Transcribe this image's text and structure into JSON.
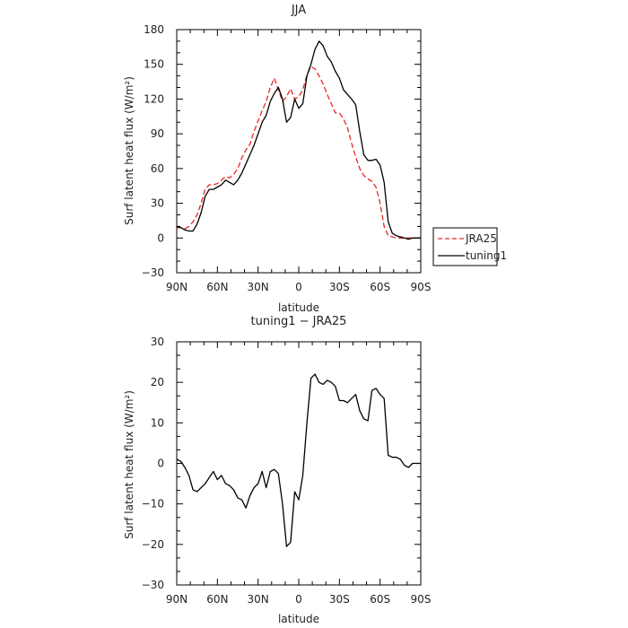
{
  "chart_data": [
    {
      "type": "line",
      "title": "JJA",
      "xlabel": "latitude",
      "ylabel": "Surf latent heat flux (W/m²)",
      "xlim": [
        90,
        -90
      ],
      "ylim": [
        -30,
        180
      ],
      "x_ticks": [
        90,
        60,
        30,
        0,
        -30,
        -60,
        -90
      ],
      "x_tick_labels": [
        "90N",
        "60N",
        "30N",
        "0",
        "30S",
        "60S",
        "90S"
      ],
      "y_ticks": [
        -30,
        0,
        30,
        60,
        90,
        120,
        150,
        180
      ],
      "y_tick_labels": [
        "−30",
        "0",
        "30",
        "60",
        "90",
        "120",
        "150",
        "180"
      ],
      "legend_position": "right",
      "series": [
        {
          "name": "JRA25",
          "color": "#e8262a",
          "dash": "dashed",
          "x": [
            90,
            87,
            84,
            81,
            78,
            75,
            72,
            69,
            66,
            63,
            60,
            57,
            54,
            51,
            48,
            45,
            42,
            39,
            36,
            33,
            30,
            27,
            24,
            21,
            18,
            15,
            12,
            9,
            6,
            3,
            0,
            -3,
            -6,
            -9,
            -12,
            -15,
            -18,
            -21,
            -24,
            -27,
            -30,
            -33,
            -36,
            -39,
            -42,
            -45,
            -48,
            -51,
            -54,
            -57,
            -60,
            -63,
            -66,
            -69,
            -72,
            -75,
            -78,
            -81,
            -84,
            -87,
            -90
          ],
          "y": [
            9,
            9,
            8,
            10,
            14,
            20,
            30,
            42,
            46,
            46,
            47,
            50,
            53,
            52,
            55,
            60,
            69,
            76,
            81,
            92,
            101,
            110,
            118,
            130,
            138,
            128,
            118,
            122,
            129,
            120,
            122,
            128,
            141,
            148,
            146,
            140,
            133,
            124,
            116,
            108,
            108,
            103,
            95,
            82,
            70,
            60,
            54,
            51,
            49,
            44,
            30,
            10,
            2,
            1,
            0,
            0,
            0,
            0,
            0,
            0,
            0
          ]
        },
        {
          "name": "tuning1",
          "color": "#000000",
          "dash": "solid",
          "x": [
            90,
            87,
            84,
            81,
            78,
            75,
            72,
            69,
            66,
            63,
            60,
            57,
            54,
            51,
            48,
            45,
            42,
            39,
            36,
            33,
            30,
            27,
            24,
            21,
            18,
            15,
            12,
            9,
            6,
            3,
            0,
            -3,
            -6,
            -9,
            -12,
            -15,
            -18,
            -21,
            -24,
            -27,
            -30,
            -33,
            -36,
            -39,
            -42,
            -45,
            -48,
            -51,
            -54,
            -57,
            -60,
            -63,
            -66,
            -69,
            -72,
            -75,
            -78,
            -81,
            -84,
            -87,
            -90
          ],
          "y": [
            10,
            9,
            7,
            6,
            6,
            12,
            22,
            36,
            42,
            42,
            44,
            46,
            50,
            48,
            46,
            50,
            56,
            64,
            72,
            80,
            90,
            100,
            106,
            118,
            125,
            130,
            120,
            100,
            104,
            120,
            112,
            116,
            140,
            150,
            163,
            170,
            166,
            157,
            152,
            144,
            138,
            128,
            124,
            120,
            115,
            92,
            72,
            67,
            67,
            68,
            63,
            48,
            14,
            4,
            2,
            1,
            0,
            -1,
            0,
            0,
            0
          ]
        }
      ]
    },
    {
      "type": "line",
      "title": "tuning1 − JRA25",
      "xlabel": "latitude",
      "ylabel": "Surf latent heat flux (W/m²)",
      "xlim": [
        90,
        -90
      ],
      "ylim": [
        -30,
        30
      ],
      "x_ticks": [
        90,
        60,
        30,
        0,
        -30,
        -60,
        -90
      ],
      "x_tick_labels": [
        "90N",
        "60N",
        "30N",
        "0",
        "30S",
        "60S",
        "90S"
      ],
      "y_ticks": [
        -30,
        -20,
        -10,
        0,
        10,
        20,
        30
      ],
      "y_tick_labels": [
        "−30",
        "−20",
        "−10",
        "0",
        "10",
        "20",
        "30"
      ],
      "series": [
        {
          "color": "#000000",
          "dash": "solid",
          "x": [
            90,
            87,
            84,
            81,
            78,
            75,
            72,
            69,
            66,
            63,
            60,
            57,
            54,
            51,
            48,
            45,
            42,
            39,
            36,
            33,
            30,
            27,
            24,
            21,
            18,
            15,
            12,
            9,
            6,
            3,
            0,
            -3,
            -6,
            -9,
            -12,
            -15,
            -18,
            -21,
            -24,
            -27,
            -30,
            -33,
            -36,
            -39,
            -42,
            -45,
            -48,
            -51,
            -54,
            -57,
            -60,
            -63,
            -66,
            -69,
            -72,
            -75,
            -78,
            -81,
            -84,
            -87,
            -90
          ],
          "y": [
            1,
            0.5,
            -1,
            -3,
            -6.5,
            -7,
            -6,
            -5,
            -3.5,
            -2,
            -4,
            -3,
            -5,
            -5.5,
            -6.5,
            -8.5,
            -9,
            -11,
            -8,
            -6,
            -5,
            -2,
            -6,
            -2,
            -1.5,
            -2.5,
            -10,
            -20.5,
            -19.5,
            -7,
            -9,
            -3,
            10,
            21,
            22,
            20,
            19.5,
            20.5,
            20,
            19,
            15.5,
            15.5,
            15,
            16,
            17,
            13,
            11,
            10.5,
            18,
            18.5,
            17,
            16,
            2,
            1.5,
            1.5,
            1,
            -0.5,
            -1,
            0,
            0,
            0
          ]
        }
      ]
    }
  ],
  "legend": {
    "items": [
      {
        "label": "JRA25",
        "color": "#e8262a",
        "dash": "dashed"
      },
      {
        "label": "tuning1",
        "color": "#000000",
        "dash": "solid"
      }
    ]
  }
}
